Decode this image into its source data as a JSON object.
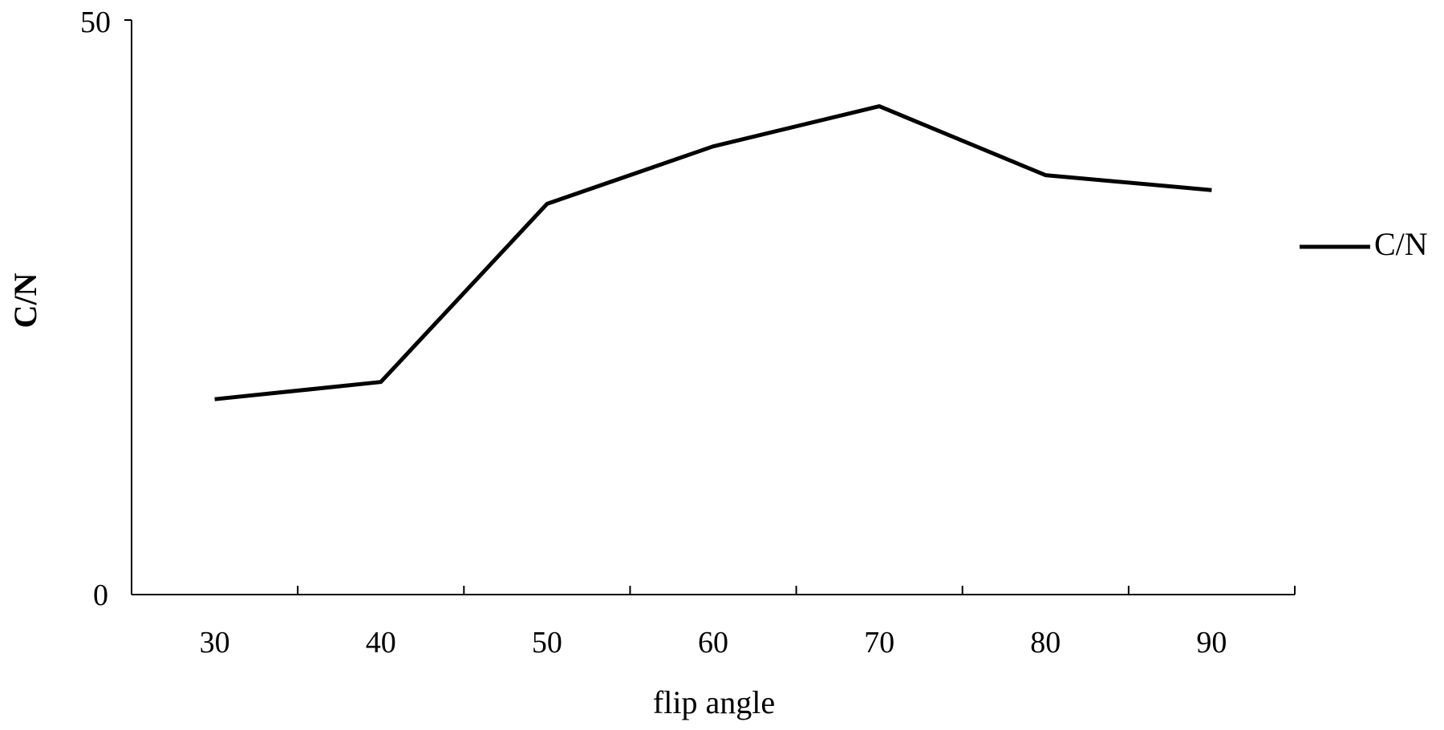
{
  "chart_data": {
    "type": "line",
    "xlabel": "flip angle",
    "ylabel": "C/N",
    "categories": [
      "30",
      "40",
      "50",
      "60",
      "70",
      "80",
      "90"
    ],
    "series": [
      {
        "name": "C/N",
        "values": [
          17,
          18.5,
          34,
          39,
          42.5,
          36.5,
          35.2
        ],
        "color": "#000000"
      }
    ],
    "ylim": [
      0,
      50
    ],
    "yticks": [
      "0",
      "50"
    ],
    "grid": false,
    "legend_position": "right"
  }
}
